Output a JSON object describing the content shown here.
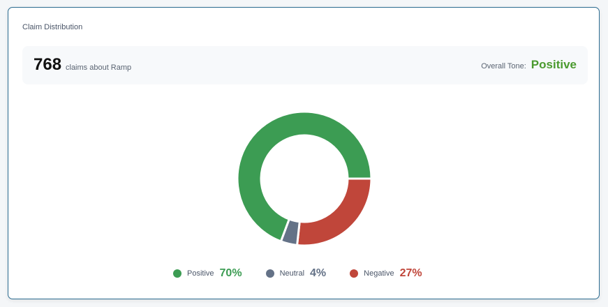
{
  "card": {
    "title": "Claim Distribution",
    "count": "768",
    "count_label": "claims about Ramp",
    "tone_label": "Overall Tone:",
    "tone_value": "Positive"
  },
  "legend": [
    {
      "label": "Positive",
      "pct": "70%",
      "color": "#3c9c53"
    },
    {
      "label": "Neutral",
      "pct": "4%",
      "color": "#647287"
    },
    {
      "label": "Negative",
      "pct": "27%",
      "color": "#c0463a"
    }
  ],
  "chart_data": {
    "type": "pie",
    "variant": "donut",
    "title": "Claim Distribution",
    "categories": [
      "Negative",
      "Neutral",
      "Positive"
    ],
    "values": [
      27,
      4,
      70
    ],
    "colors": [
      "#c0463a",
      "#647287",
      "#3c9c53"
    ],
    "total": 768,
    "start_angle": "3 o'clock, clockwise",
    "legend_position": "bottom"
  }
}
